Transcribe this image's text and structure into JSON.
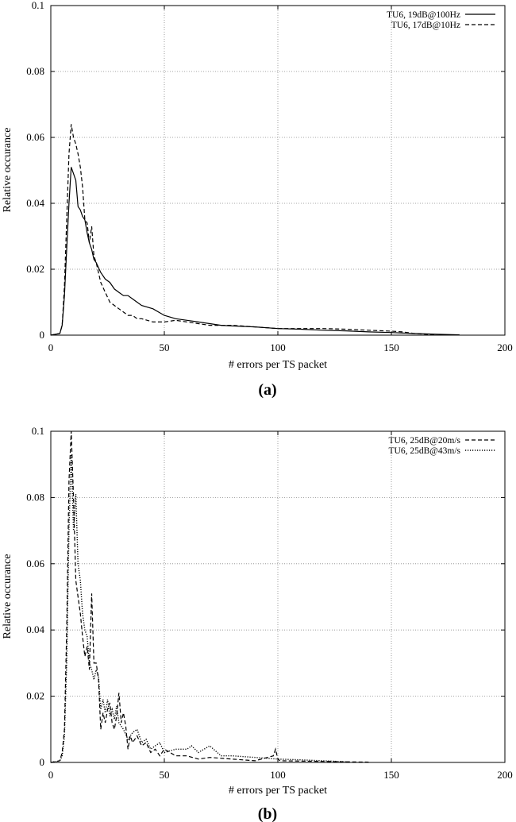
{
  "chart_data": [
    {
      "type": "line",
      "panel_label": "(a)",
      "xlabel": "# errors per TS packet",
      "ylabel": "Relative occurance",
      "xlim": [
        0,
        200
      ],
      "ylim": [
        0,
        0.1
      ],
      "xticks": [
        "0",
        "50",
        "100",
        "150",
        "200"
      ],
      "yticks": [
        "0",
        "0.02",
        "0.04",
        "0.06",
        "0.08",
        "0.1"
      ],
      "grid": true,
      "legend_position": "top-right",
      "series": [
        {
          "name": "TU6, 19dB@100Hz",
          "style": "solid",
          "x": [
            0,
            4,
            5,
            6,
            7,
            8,
            9,
            10,
            11,
            12,
            13,
            14,
            15,
            16,
            17,
            18,
            19,
            20,
            22,
            24,
            26,
            28,
            30,
            32,
            34,
            36,
            38,
            40,
            45,
            50,
            55,
            60,
            65,
            70,
            75,
            80,
            90,
            100,
            110,
            120,
            130,
            140,
            150,
            160,
            170,
            180
          ],
          "y": [
            0,
            0.0005,
            0.003,
            0.012,
            0.026,
            0.04,
            0.051,
            0.049,
            0.047,
            0.039,
            0.038,
            0.036,
            0.035,
            0.031,
            0.028,
            0.026,
            0.023,
            0.022,
            0.019,
            0.017,
            0.016,
            0.014,
            0.013,
            0.012,
            0.012,
            0.011,
            0.01,
            0.009,
            0.008,
            0.006,
            0.005,
            0.0045,
            0.004,
            0.0035,
            0.003,
            0.0028,
            0.0025,
            0.002,
            0.0018,
            0.0015,
            0.0013,
            0.001,
            0.0008,
            0.0005,
            0.0003,
            0.0001
          ]
        },
        {
          "name": "TU6, 17dB@10Hz",
          "style": "dashed",
          "x": [
            0,
            4,
            5,
            6,
            7,
            8,
            9,
            10,
            11,
            12,
            13,
            14,
            15,
            16,
            17,
            18,
            19,
            20,
            22,
            24,
            26,
            28,
            30,
            32,
            34,
            36,
            38,
            40,
            45,
            50,
            55,
            60,
            65,
            70,
            80,
            90,
            100,
            110,
            120,
            130,
            140,
            150,
            155,
            160,
            165,
            170
          ],
          "y": [
            0,
            0.0005,
            0.003,
            0.015,
            0.035,
            0.055,
            0.064,
            0.06,
            0.058,
            0.055,
            0.051,
            0.045,
            0.035,
            0.034,
            0.028,
            0.033,
            0.024,
            0.022,
            0.016,
            0.013,
            0.01,
            0.009,
            0.008,
            0.007,
            0.006,
            0.006,
            0.005,
            0.005,
            0.004,
            0.004,
            0.0045,
            0.004,
            0.0035,
            0.003,
            0.003,
            0.0025,
            0.002,
            0.002,
            0.002,
            0.0018,
            0.0015,
            0.0012,
            0.001,
            0.0005,
            0.0003,
            0.0001
          ]
        }
      ]
    },
    {
      "type": "line",
      "panel_label": "(b)",
      "xlabel": "# errors per TS packet",
      "ylabel": "Relative occurance",
      "xlim": [
        0,
        200
      ],
      "ylim": [
        0,
        0.1
      ],
      "xticks": [
        "0",
        "50",
        "100",
        "150",
        "200"
      ],
      "yticks": [
        "0",
        "0.02",
        "0.04",
        "0.06",
        "0.08",
        "0.1"
      ],
      "grid": true,
      "legend_position": "top-right",
      "series": [
        {
          "name": "TU6, 25dB@20m/s",
          "style": "dashed",
          "x": [
            0,
            4,
            5,
            6,
            7,
            8,
            9,
            10,
            11,
            12,
            13,
            14,
            15,
            16,
            17,
            18,
            19,
            20,
            21,
            22,
            23,
            24,
            25,
            26,
            27,
            28,
            29,
            30,
            31,
            32,
            33,
            34,
            35,
            36,
            38,
            40,
            42,
            44,
            46,
            48,
            50,
            55,
            60,
            65,
            70,
            80,
            90,
            98,
            99,
            100,
            101,
            110,
            120,
            130,
            140
          ],
          "y": [
            0,
            0.0005,
            0.003,
            0.01,
            0.04,
            0.085,
            0.1,
            0.08,
            0.055,
            0.05,
            0.045,
            0.038,
            0.032,
            0.035,
            0.028,
            0.051,
            0.03,
            0.03,
            0.025,
            0.01,
            0.015,
            0.012,
            0.016,
            0.018,
            0.012,
            0.01,
            0.014,
            0.021,
            0.012,
            0.015,
            0.011,
            0.004,
            0.008,
            0.006,
            0.008,
            0.005,
            0.006,
            0.003,
            0.004,
            0.002,
            0.004,
            0.002,
            0.002,
            0.001,
            0.0015,
            0.001,
            0.0005,
            0.002,
            0.004,
            0.001,
            0.0005,
            0.0004,
            0.0003,
            0.0002,
            0.0001
          ]
        },
        {
          "name": "TU6, 25dB@43m/s",
          "style": "dotted",
          "x": [
            0,
            4,
            5,
            6,
            7,
            8,
            9,
            10,
            11,
            12,
            13,
            14,
            15,
            16,
            17,
            18,
            19,
            20,
            21,
            22,
            23,
            24,
            25,
            26,
            27,
            28,
            29,
            30,
            32,
            34,
            36,
            38,
            40,
            42,
            44,
            46,
            48,
            50,
            55,
            60,
            62,
            65,
            70,
            75,
            80,
            90,
            100,
            110,
            120,
            130
          ],
          "y": [
            0,
            0.0005,
            0.002,
            0.008,
            0.03,
            0.07,
            0.093,
            0.07,
            0.081,
            0.06,
            0.055,
            0.045,
            0.04,
            0.038,
            0.03,
            0.028,
            0.025,
            0.028,
            0.026,
            0.016,
            0.019,
            0.015,
            0.019,
            0.014,
            0.016,
            0.013,
            0.017,
            0.012,
            0.01,
            0.007,
            0.009,
            0.01,
            0.006,
            0.007,
            0.004,
            0.005,
            0.006,
            0.003,
            0.004,
            0.004,
            0.005,
            0.003,
            0.005,
            0.002,
            0.002,
            0.0015,
            0.001,
            0.0008,
            0.0005,
            0.0002
          ]
        }
      ]
    }
  ]
}
